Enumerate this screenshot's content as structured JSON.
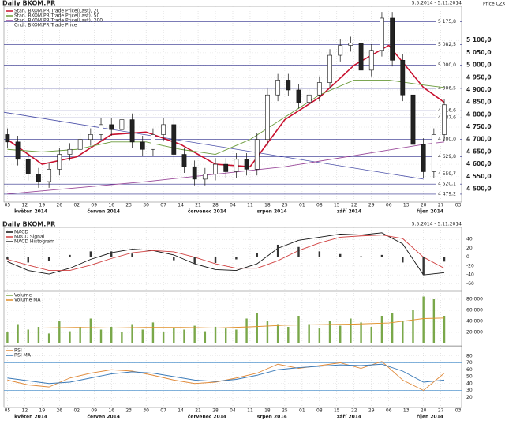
{
  "chart_data": [
    {
      "type": "candlestick",
      "title": "Daily BKOM.PR",
      "date_range": "5.5.2014 - 5.11.2014",
      "ylabel": "Price CZK",
      "candle_name": "Cndl. BKOM.PR Trade Price",
      "xlim": [
        -1,
        131
      ],
      "ylim": [
        4460,
        5225
      ],
      "xticks": [
        {
          "value": 0,
          "label": "05"
        },
        {
          "value": 5,
          "label": "12"
        },
        {
          "value": 10,
          "label": "19"
        },
        {
          "value": 15,
          "label": "26"
        },
        {
          "value": 20,
          "label": "02"
        },
        {
          "value": 25,
          "label": "09"
        },
        {
          "value": 30,
          "label": "16"
        },
        {
          "value": 35,
          "label": "23"
        },
        {
          "value": 40,
          "label": "30"
        },
        {
          "value": 45,
          "label": "07"
        },
        {
          "value": 50,
          "label": "14"
        },
        {
          "value": 55,
          "label": "21"
        },
        {
          "value": 60,
          "label": "28"
        },
        {
          "value": 65,
          "label": "04"
        },
        {
          "value": 70,
          "label": "11"
        },
        {
          "value": 75,
          "label": "18"
        },
        {
          "value": 80,
          "label": "25"
        },
        {
          "value": 85,
          "label": "01"
        },
        {
          "value": 90,
          "label": "08"
        },
        {
          "value": 95,
          "label": "15"
        },
        {
          "value": 100,
          "label": "22"
        },
        {
          "value": 105,
          "label": "29"
        },
        {
          "value": 110,
          "label": "06"
        },
        {
          "value": 115,
          "label": "13"
        },
        {
          "value": 120,
          "label": "20"
        },
        {
          "value": 125,
          "label": "27"
        },
        {
          "value": 130,
          "label": "03"
        }
      ],
      "month_labels": [
        {
          "value": 2,
          "label": "květen 2014"
        },
        {
          "value": 23,
          "label": "červen 2014"
        },
        {
          "value": 52,
          "label": "červenec 2014"
        },
        {
          "value": 72,
          "label": "srpen 2014"
        },
        {
          "value": 95,
          "label": "září 2014"
        },
        {
          "value": 118,
          "label": "říjen 2014"
        }
      ],
      "yticks": [
        {
          "value": 5100,
          "label": "5 100,0"
        },
        {
          "value": 5050,
          "label": "5 050,0"
        },
        {
          "value": 5000,
          "label": "5 000,0"
        },
        {
          "value": 4950,
          "label": "4 950,0"
        },
        {
          "value": 4900,
          "label": "4 900,0"
        },
        {
          "value": 4850,
          "label": "4 850,0"
        },
        {
          "value": 4800,
          "label": "4 800,0"
        },
        {
          "value": 4750,
          "label": "4 750,0"
        },
        {
          "value": 4700,
          "label": "4 700,0"
        },
        {
          "value": 4650,
          "label": "4 650,0"
        },
        {
          "value": 4600,
          "label": "4 600,0"
        },
        {
          "value": 4550,
          "label": "4 550,0"
        },
        {
          "value": 4500,
          "label": "4 500,0"
        }
      ],
      "levels": [
        {
          "value": 5175.8,
          "label": "5 175,8"
        },
        {
          "value": 5082.5,
          "label": "5 082,5"
        },
        {
          "value": 5000.0,
          "label": "5 000,0"
        },
        {
          "value": 4906.5,
          "label": "4 906,5"
        },
        {
          "value": 4816.6,
          "label": "4 816,6"
        },
        {
          "value": 4787.6,
          "label": "4 787,6"
        },
        {
          "value": 4700.0,
          "label": "4 700,0"
        },
        {
          "value": 4629.8,
          "label": "4 629,8"
        },
        {
          "value": 4559.7,
          "label": "4 559,7"
        },
        {
          "value": 4520.1,
          "label": "4 520,1"
        },
        {
          "value": 4479.2,
          "label": "4 479,2"
        }
      ],
      "trendline": {
        "x": [
          -1,
          120
        ],
        "values": [
          4810,
          4540
        ],
        "color": "#4a4fa8"
      },
      "x": [
        0,
        3,
        6,
        9,
        12,
        15,
        18,
        21,
        24,
        27,
        30,
        33,
        36,
        39,
        42,
        45,
        48,
        51,
        54,
        57,
        60,
        63,
        66,
        69,
        72,
        75,
        78,
        81,
        84,
        87,
        90,
        93,
        96,
        99,
        102,
        105,
        108,
        111,
        114,
        117,
        120,
        123,
        126
      ],
      "open": [
        4720,
        4690,
        4620,
        4560,
        4530,
        4580,
        4640,
        4660,
        4700,
        4720,
        4760,
        4740,
        4780,
        4690,
        4660,
        4720,
        4760,
        4640,
        4590,
        4540,
        4560,
        4600,
        4570,
        4620,
        4580,
        4700,
        4880,
        4940,
        4900,
        4850,
        4880,
        4930,
        5040,
        5080,
        5090,
        4980,
        5060,
        5190,
        5020,
        4880,
        4680,
        4570,
        4720
      ],
      "high": [
        4745,
        4715,
        4645,
        4585,
        4605,
        4665,
        4685,
        4725,
        4745,
        4785,
        4785,
        4805,
        4805,
        4715,
        4745,
        4785,
        4785,
        4665,
        4615,
        4585,
        4625,
        4625,
        4645,
        4645,
        4725,
        4905,
        4965,
        4965,
        4925,
        4905,
        4955,
        5065,
        5105,
        5115,
        5115,
        5085,
        5215,
        5215,
        5045,
        4905,
        4705,
        4745,
        4865
      ],
      "low": [
        4665,
        4595,
        4535,
        4505,
        4505,
        4555,
        4615,
        4635,
        4675,
        4695,
        4715,
        4715,
        4665,
        4635,
        4635,
        4695,
        4615,
        4565,
        4515,
        4515,
        4535,
        4545,
        4545,
        4555,
        4555,
        4675,
        4855,
        4875,
        4825,
        4825,
        4855,
        4905,
        5015,
        5055,
        4955,
        4955,
        5035,
        4995,
        4855,
        4655,
        4545,
        4545,
        4695
      ],
      "close": [
        4690,
        4620,
        4560,
        4530,
        4580,
        4640,
        4660,
        4700,
        4720,
        4760,
        4740,
        4780,
        4690,
        4660,
        4720,
        4760,
        4640,
        4590,
        4540,
        4560,
        4600,
        4570,
        4620,
        4580,
        4700,
        4880,
        4940,
        4900,
        4850,
        4880,
        4930,
        5040,
        5080,
        5090,
        4980,
        5060,
        5190,
        5020,
        4880,
        4680,
        4570,
        4720,
        4840
      ],
      "series": [
        {
          "name": "Stan. BKOM.PR Trade Price(Last), 20",
          "color": "#c8102e",
          "x": [
            0,
            10,
            20,
            30,
            40,
            50,
            60,
            70,
            80,
            90,
            100,
            110,
            120,
            126
          ],
          "values": [
            4700,
            4600,
            4630,
            4720,
            4730,
            4680,
            4600,
            4590,
            4780,
            4870,
            5000,
            5080,
            4910,
            4850
          ]
        },
        {
          "name": "Stan. BKOM.PR Trade Price(Last), 50",
          "color": "#6a9a3a",
          "x": [
            0,
            10,
            20,
            30,
            40,
            50,
            60,
            70,
            80,
            90,
            100,
            110,
            120,
            126
          ],
          "values": [
            4660,
            4650,
            4660,
            4690,
            4690,
            4660,
            4640,
            4700,
            4790,
            4880,
            4940,
            4940,
            4920,
            4910
          ]
        },
        {
          "name": "Stan. BKOM.PR Trade Price(Last), 200",
          "color": "#9a4a9a",
          "x": [
            0,
            40,
            80,
            120,
            126
          ],
          "values": [
            4480,
            4530,
            4590,
            4680,
            4690
          ]
        }
      ]
    },
    {
      "type": "line",
      "title": "Daily BKOM.PR",
      "date_range": "5.5.2014 - 5.11.2014",
      "xlim": [
        -1,
        131
      ],
      "ylim": [
        -70,
        60
      ],
      "yticks": [
        40,
        20,
        0,
        -20,
        -40,
        -60
      ],
      "x": [
        0,
        6,
        12,
        18,
        24,
        30,
        36,
        42,
        48,
        54,
        60,
        66,
        72,
        78,
        84,
        90,
        96,
        102,
        108,
        114,
        120,
        126
      ],
      "series": [
        {
          "name": "MACD",
          "color": "#111111",
          "values": [
            -10,
            -30,
            -38,
            -25,
            -5,
            10,
            18,
            15,
            5,
            -15,
            -28,
            -30,
            -15,
            20,
            38,
            45,
            52,
            50,
            55,
            30,
            -40,
            -35
          ]
        },
        {
          "name": "MACD Signal",
          "color": "#d04040",
          "values": [
            -5,
            -18,
            -30,
            -30,
            -18,
            -3,
            10,
            15,
            12,
            0,
            -15,
            -25,
            -25,
            -8,
            15,
            32,
            45,
            48,
            50,
            42,
            0,
            -25
          ]
        },
        {
          "name": "MACD Histogram",
          "color": "#333333",
          "style": "bar",
          "values": [
            -5,
            -12,
            -8,
            5,
            13,
            13,
            8,
            0,
            -7,
            -15,
            -13,
            -5,
            10,
            28,
            23,
            13,
            7,
            2,
            5,
            -12,
            -40,
            -10
          ]
        }
      ]
    },
    {
      "type": "bar",
      "xlim": [
        -1,
        131
      ],
      "ylim": [
        0,
        90000
      ],
      "yticks": [
        {
          "value": 80000,
          "label": "80 000"
        },
        {
          "value": 60000,
          "label": "60 000"
        },
        {
          "value": 40000,
          "label": "40 000"
        },
        {
          "value": 20000,
          "label": "20 000"
        }
      ],
      "x": [
        0,
        3,
        6,
        9,
        12,
        15,
        18,
        21,
        24,
        27,
        30,
        33,
        36,
        39,
        42,
        45,
        48,
        51,
        54,
        57,
        60,
        63,
        66,
        69,
        72,
        75,
        78,
        81,
        84,
        87,
        90,
        93,
        96,
        99,
        102,
        105,
        108,
        111,
        114,
        117,
        120,
        123,
        126
      ],
      "series": [
        {
          "name": "Volume",
          "color": "#7aa84a",
          "style": "bar",
          "values": [
            20000,
            35000,
            25000,
            30000,
            18000,
            40000,
            22000,
            30000,
            45000,
            25000,
            30000,
            20000,
            35000,
            25000,
            38000,
            20000,
            28000,
            25000,
            32000,
            22000,
            30000,
            27000,
            25000,
            45000,
            55000,
            40000,
            35000,
            30000,
            50000,
            35000,
            28000,
            40000,
            32000,
            45000,
            38000,
            30000,
            50000,
            55000,
            40000,
            60000,
            85000,
            80000,
            50000
          ]
        },
        {
          "name": "Volume MA",
          "color": "#e0902a",
          "x": [
            0,
            10,
            20,
            30,
            40,
            50,
            60,
            70,
            80,
            90,
            100,
            110,
            120,
            126
          ],
          "values": [
            28000,
            28000,
            29000,
            28000,
            29000,
            29000,
            28000,
            30000,
            33000,
            34000,
            35000,
            37000,
            45000,
            46000
          ]
        }
      ]
    },
    {
      "type": "line",
      "xlim": [
        -1,
        131
      ],
      "ylim": [
        10,
        90
      ],
      "yticks": [
        80,
        70,
        60,
        50,
        40,
        30,
        20
      ],
      "reference_lines": [
        70,
        30
      ],
      "xticks": [
        {
          "value": 0,
          "label": "05"
        },
        {
          "value": 5,
          "label": "12"
        },
        {
          "value": 10,
          "label": "19"
        },
        {
          "value": 15,
          "label": "26"
        },
        {
          "value": 20,
          "label": "02"
        },
        {
          "value": 25,
          "label": "09"
        },
        {
          "value": 30,
          "label": "16"
        },
        {
          "value": 35,
          "label": "23"
        },
        {
          "value": 40,
          "label": "30"
        },
        {
          "value": 45,
          "label": "07"
        },
        {
          "value": 50,
          "label": "14"
        },
        {
          "value": 55,
          "label": "21"
        },
        {
          "value": 60,
          "label": "28"
        },
        {
          "value": 65,
          "label": "04"
        },
        {
          "value": 70,
          "label": "11"
        },
        {
          "value": 75,
          "label": "18"
        },
        {
          "value": 80,
          "label": "25"
        },
        {
          "value": 85,
          "label": "01"
        },
        {
          "value": 90,
          "label": "08"
        },
        {
          "value": 95,
          "label": "15"
        },
        {
          "value": 100,
          "label": "22"
        },
        {
          "value": 105,
          "label": "29"
        },
        {
          "value": 110,
          "label": "06"
        },
        {
          "value": 115,
          "label": "13"
        },
        {
          "value": 120,
          "label": "20"
        },
        {
          "value": 125,
          "label": "27"
        },
        {
          "value": 130,
          "label": "03"
        }
      ],
      "month_labels": [
        {
          "value": 2,
          "label": "květen 2014"
        },
        {
          "value": 23,
          "label": "červen 2014"
        },
        {
          "value": 52,
          "label": "červenec 2014"
        },
        {
          "value": 72,
          "label": "srpen 2014"
        },
        {
          "value": 95,
          "label": "září 2014"
        },
        {
          "value": 118,
          "label": "říjen 2014"
        }
      ],
      "x": [
        0,
        6,
        12,
        18,
        24,
        30,
        36,
        42,
        48,
        54,
        60,
        66,
        72,
        78,
        84,
        90,
        96,
        102,
        108,
        114,
        120,
        126
      ],
      "series": [
        {
          "name": "RSI",
          "color": "#e08a3a",
          "values": [
            45,
            38,
            35,
            48,
            55,
            60,
            58,
            52,
            45,
            40,
            42,
            48,
            55,
            68,
            62,
            66,
            70,
            62,
            72,
            45,
            30,
            55
          ]
        },
        {
          "name": "RSI MA",
          "color": "#3a7ab8",
          "values": [
            48,
            44,
            40,
            42,
            48,
            54,
            57,
            55,
            50,
            45,
            43,
            46,
            52,
            60,
            63,
            65,
            67,
            66,
            68,
            58,
            42,
            45
          ]
        }
      ]
    }
  ]
}
